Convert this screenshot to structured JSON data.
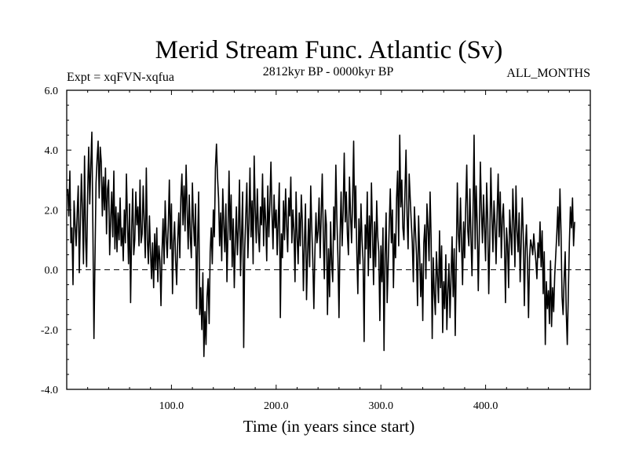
{
  "chart_data": {
    "type": "line",
    "title": "Merid Stream Func. Atlantic (Sv)",
    "subtitle_left": "Expt = xqFVN-xqfua",
    "subtitle_center": "2812kyr BP - 0000kyr BP",
    "subtitle_right": "ALL_MONTHS",
    "xlabel": "Time (in years since start)",
    "ylabel": "",
    "xlim": [
      0,
      500
    ],
    "ylim": [
      -4.0,
      6.0
    ],
    "x_ticks": [
      100,
      200,
      300,
      400
    ],
    "x_tick_labels": [
      "100.0",
      "200.0",
      "300.0",
      "400.0"
    ],
    "y_ticks": [
      -4,
      -2,
      0,
      2,
      4,
      6
    ],
    "y_tick_labels": [
      "-4.0",
      "-2.0",
      "0.0",
      "2.0",
      "4.0",
      "6.0"
    ],
    "reference_line": 0.0,
    "series": [
      {
        "name": "Merid Stream Func. Atlantic",
        "x_start": 1,
        "x_step": 1,
        "values": [
          2.7,
          1.8,
          3.3,
          0.9,
          1.4,
          -0.5,
          2.3,
          1.5,
          0.8,
          1.9,
          2.8,
          -0.1,
          1.6,
          3.2,
          2.0,
          0.2,
          3.8,
          1.1,
          0.1,
          2.6,
          4.1,
          2.2,
          3.5,
          4.6,
          1.3,
          -2.3,
          0.4,
          2.9,
          3.7,
          4.3,
          2.4,
          4.1,
          3.6,
          1.8,
          3.1,
          2.0,
          3.4,
          1.2,
          2.7,
          3.0,
          0.5,
          1.7,
          2.6,
          1.1,
          3.3,
          0.7,
          2.1,
          0.6,
          1.9,
          1.0,
          2.4,
          0.8,
          1.4,
          0.3,
          2.0,
          0.9,
          3.2,
          1.6,
          0.2,
          2.2,
          -1.1,
          1.3,
          2.7,
          0.5,
          1.0,
          2.6,
          1.5,
          2.1,
          0.8,
          3.0,
          0.9,
          1.2,
          2.8,
          1.6,
          0.4,
          3.4,
          1.0,
          0.2,
          1.8,
          0.6,
          -0.3,
          0.9,
          -0.6,
          1.2,
          0.0,
          1.4,
          -0.4,
          0.8,
          0.3,
          -1.2,
          0.6,
          1.7,
          0.2,
          2.3,
          1.1,
          0.4,
          1.5,
          3.0,
          0.7,
          2.2,
          -0.8,
          0.9,
          1.6,
          0.3,
          -0.5,
          1.0,
          1.9,
          0.4,
          2.4,
          3.2,
          1.5,
          2.8,
          1.3,
          3.5,
          2.0,
          0.7,
          2.5,
          1.1,
          0.4,
          2.9,
          1.6,
          0.8,
          2.2,
          -1.3,
          0.9,
          2.6,
          -1.5,
          -0.6,
          -2.0,
          -0.1,
          -2.9,
          -1.4,
          -2.5,
          -0.9,
          -0.3,
          -1.8,
          0.6,
          1.4,
          0.2,
          2.0,
          1.1,
          3.4,
          4.2,
          3.1,
          2.4,
          0.8,
          1.9,
          0.3,
          2.7,
          1.5,
          0.6,
          2.2,
          -0.4,
          1.3,
          3.3,
          1.0,
          2.5,
          0.1,
          1.7,
          -0.6,
          0.9,
          2.1,
          0.5,
          1.4,
          3.0,
          -0.2,
          1.2,
          2.6,
          -2.6,
          0.7,
          1.8,
          2.9,
          0.4,
          1.6,
          3.4,
          1.1,
          2.3,
          0.2,
          3.8,
          2.0,
          0.9,
          2.7,
          1.3,
          0.6,
          2.1,
          1.5,
          3.2,
          0.8,
          2.4,
          1.6,
          0.3,
          2.8,
          1.1,
          2.2,
          3.6,
          1.9,
          0.7,
          2.5,
          1.4,
          2.0,
          0.5,
          1.7,
          2.9,
          -1.6,
          1.2,
          0.4,
          2.3,
          1.0,
          2.7,
          1.5,
          0.6,
          2.4,
          1.8,
          3.1,
          0.9,
          2.0,
          1.3,
          -0.4,
          2.6,
          1.1,
          0.2,
          1.9,
          0.8,
          2.5,
          1.6,
          -0.7,
          0.9,
          2.2,
          -1.0,
          0.5,
          1.7,
          0.1,
          2.8,
          1.4,
          0.3,
          -1.3,
          0.6,
          1.9,
          0.9,
          1.3,
          2.4,
          0.4,
          1.8,
          3.2,
          1.2,
          -0.3,
          2.0,
          1.5,
          -1.5,
          0.7,
          -0.9,
          1.6,
          0.2,
          -0.4,
          2.1,
          1.0,
          3.5,
          1.7,
          0.4,
          -1.6,
          1.1,
          2.6,
          0.8,
          2.0,
          3.9,
          1.6,
          2.6,
          1.2,
          0.5,
          3.1,
          1.9,
          0.9,
          2.3,
          4.3,
          1.4,
          2.8,
          0.6,
          -0.8,
          1.7,
          0.2,
          2.2,
          1.0,
          0.3,
          -2.4,
          1.5,
          0.7,
          2.6,
          -0.2,
          1.8,
          0.4,
          2.9,
          1.2,
          -0.5,
          1.6,
          0.1,
          2.3,
          1.1,
          0.6,
          -1.7,
          0.8,
          -0.4,
          1.4,
          -2.7,
          0.5,
          1.9,
          -1.1,
          0.2,
          1.5,
          2.7,
          0.9,
          2.0,
          -0.6,
          1.2,
          0.4,
          2.4,
          3.3,
          0.8,
          4.5,
          2.1,
          3.0,
          1.4,
          1.0,
          2.6,
          4.0,
          1.8,
          0.7,
          3.2,
          2.4,
          1.6,
          0.9,
          -0.4,
          2.1,
          1.3,
          0.5,
          -1.2,
          1.8,
          0.6,
          -0.9,
          0.2,
          -1.7,
          0.9,
          1.5,
          -0.3,
          2.2,
          1.4,
          0.3,
          2.6,
          1.0,
          -2.3,
          0.4,
          -0.8,
          -1.5,
          0.6,
          -0.2,
          -1.1,
          1.3,
          -0.6,
          0.8,
          -2.1,
          -0.4,
          -1.3,
          0.5,
          -2.0,
          -0.7,
          0.2,
          -1.6,
          -0.3,
          1.1,
          -0.9,
          0.7,
          -2.2,
          0.3,
          2.9,
          1.2,
          0.6,
          2.4,
          0.9,
          -0.5,
          1.6,
          0.4,
          2.1,
          3.5,
          1.3,
          0.8,
          2.7,
          1.1,
          -0.2,
          1.9,
          4.5,
          0.7,
          2.8,
          1.5,
          -0.7,
          1.2,
          3.6,
          2.0,
          0.9,
          2.5,
          1.4,
          0.3,
          2.9,
          1.7,
          -0.8,
          1.0,
          3.4,
          1.8,
          0.6,
          2.3,
          1.5,
          0.2,
          1.9,
          3.2,
          1.1,
          2.6,
          0.4,
          1.7,
          2.2,
          0.9,
          -1.1,
          1.4,
          0.8,
          -0.6,
          2.0,
          1.2,
          0.5,
          2.7,
          1.6,
          0.1,
          2.8,
          1.3,
          0.6,
          1.9,
          -0.4,
          0.9,
          2.4,
          1.1,
          -1.2,
          0.7,
          1.5,
          0.2,
          -1.6,
          0.4,
          1.0,
          0.8,
          0.5,
          1.2,
          0.7,
          0.3,
          -0.3,
          0.9,
          0.4,
          1.6,
          0.1,
          1.3,
          -0.8,
          0.6,
          -2.5,
          -0.4,
          -1.3,
          -0.7,
          -1.8,
          0.3,
          -1.9,
          -0.6,
          -1.4,
          -0.2,
          0.5,
          1.2,
          2.1,
          0.8,
          2.7,
          1.3,
          -0.9,
          -1.5,
          -0.3,
          0.6,
          -1.4,
          -2.5,
          -0.8,
          0.9,
          2.1,
          1.4,
          2.4,
          0.8,
          1.6
        ]
      }
    ]
  }
}
